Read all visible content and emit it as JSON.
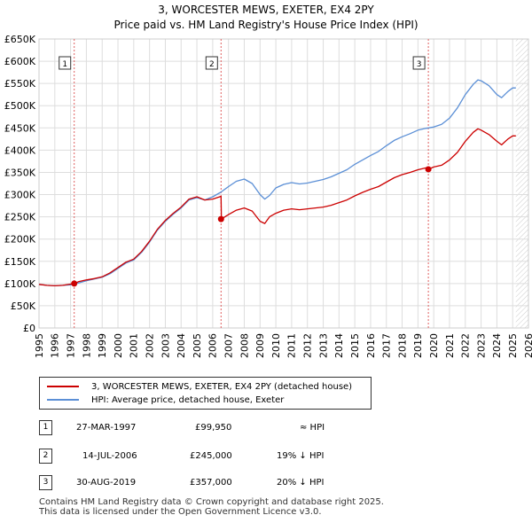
{
  "title": "3, WORCESTER MEWS, EXETER, EX4 2PY",
  "subtitle": "Price paid vs. HM Land Registry's House Price Index (HPI)",
  "colors": {
    "property": "#cc0000",
    "hpi": "#5b8fd6",
    "marker_line": "#e06060",
    "hatch": "#aaaaaa"
  },
  "chart_data": {
    "type": "line",
    "ylim": [
      0,
      650000
    ],
    "xlim": [
      1995,
      2026
    ],
    "y_ticks": [
      "£0",
      "£50K",
      "£100K",
      "£150K",
      "£200K",
      "£250K",
      "£300K",
      "£350K",
      "£400K",
      "£450K",
      "£500K",
      "£550K",
      "£600K",
      "£650K"
    ],
    "x_ticks": [
      "1995",
      "1996",
      "1997",
      "1998",
      "1999",
      "2000",
      "2001",
      "2002",
      "2003",
      "2004",
      "2005",
      "2006",
      "2007",
      "2008",
      "2009",
      "2010",
      "2011",
      "2012",
      "2013",
      "2014",
      "2015",
      "2016",
      "2017",
      "2018",
      "2019",
      "2020",
      "2021",
      "2022",
      "2023",
      "2024",
      "2025",
      "2026"
    ],
    "grid": true,
    "future_hatch_from": 2025.2,
    "series": [
      {
        "name": "3, WORCESTER MEWS, EXETER, EX4 2PY (detached house)",
        "x": [
          1995.0,
          1995.5,
          1996.0,
          1996.5,
          1997.23,
          1997.5,
          1998.0,
          1998.5,
          1999.0,
          1999.5,
          2000.0,
          2000.5,
          2001.0,
          2001.5,
          2002.0,
          2002.5,
          2003.0,
          2003.5,
          2004.0,
          2004.5,
          2005.0,
          2005.5,
          2006.0,
          2006.53,
          2006.55,
          2007.0,
          2007.5,
          2008.0,
          2008.5,
          2009.0,
          2009.3,
          2009.6,
          2010.0,
          2010.5,
          2011.0,
          2011.5,
          2012.0,
          2012.5,
          2013.0,
          2013.5,
          2014.0,
          2014.5,
          2015.0,
          2015.5,
          2016.0,
          2016.5,
          2017.0,
          2017.5,
          2018.0,
          2018.5,
          2019.0,
          2019.5,
          2019.66,
          2020.0,
          2020.5,
          2021.0,
          2021.5,
          2022.0,
          2022.5,
          2022.8,
          2023.0,
          2023.5,
          2024.0,
          2024.3,
          2024.7,
          2025.0,
          2025.2
        ],
        "y": [
          98000,
          96000,
          95000,
          96000,
          99950,
          104000,
          108000,
          111000,
          115000,
          124000,
          136000,
          148000,
          155000,
          172000,
          195000,
          222000,
          242000,
          258000,
          272000,
          290000,
          295000,
          288000,
          290000,
          296000,
          245000,
          255000,
          265000,
          270000,
          263000,
          240000,
          235000,
          250000,
          258000,
          265000,
          268000,
          266000,
          268000,
          270000,
          272000,
          276000,
          282000,
          288000,
          297000,
          305000,
          312000,
          318000,
          328000,
          338000,
          345000,
          350000,
          356000,
          360000,
          357000,
          362000,
          366000,
          378000,
          395000,
          420000,
          440000,
          448000,
          445000,
          435000,
          420000,
          412000,
          425000,
          432000,
          432000
        ]
      },
      {
        "name": "HPI: Average price, detached house, Exeter",
        "x": [
          1995.0,
          1995.5,
          1996.0,
          1996.5,
          1997.0,
          1997.5,
          1998.0,
          1998.5,
          1999.0,
          1999.5,
          2000.0,
          2000.5,
          2001.0,
          2001.5,
          2002.0,
          2002.5,
          2003.0,
          2003.5,
          2004.0,
          2004.5,
          2005.0,
          2005.5,
          2006.0,
          2006.5,
          2007.0,
          2007.5,
          2008.0,
          2008.5,
          2009.0,
          2009.3,
          2009.6,
          2010.0,
          2010.5,
          2011.0,
          2011.5,
          2012.0,
          2012.5,
          2013.0,
          2013.5,
          2014.0,
          2014.5,
          2015.0,
          2015.5,
          2016.0,
          2016.5,
          2017.0,
          2017.5,
          2018.0,
          2018.5,
          2019.0,
          2019.5,
          2020.0,
          2020.5,
          2021.0,
          2021.5,
          2022.0,
          2022.5,
          2022.8,
          2023.0,
          2023.5,
          2024.0,
          2024.3,
          2024.7,
          2025.0,
          2025.2
        ],
        "y": [
          98000,
          96000,
          95000,
          96000,
          97000,
          101000,
          106000,
          110000,
          114000,
          122000,
          134000,
          146000,
          153000,
          170000,
          193000,
          220000,
          240000,
          256000,
          270000,
          288000,
          293000,
          288000,
          295000,
          305000,
          318000,
          330000,
          335000,
          325000,
          300000,
          290000,
          298000,
          315000,
          323000,
          327000,
          324000,
          326000,
          330000,
          334000,
          340000,
          348000,
          356000,
          368000,
          378000,
          388000,
          397000,
          410000,
          422000,
          430000,
          437000,
          445000,
          449000,
          452000,
          458000,
          472000,
          495000,
          525000,
          548000,
          558000,
          556000,
          545000,
          525000,
          518000,
          532000,
          540000,
          540000
        ]
      }
    ],
    "markers": [
      {
        "label": "1",
        "x": 1997.23,
        "y": 99950
      },
      {
        "label": "2",
        "x": 2006.53,
        "y": 245000
      },
      {
        "label": "3",
        "x": 2019.66,
        "y": 357000
      }
    ]
  },
  "legend": {
    "property": "3, WORCESTER MEWS, EXETER, EX4 2PY (detached house)",
    "hpi": "HPI: Average price, detached house, Exeter"
  },
  "transactions": [
    {
      "num": "1",
      "date": "27-MAR-1997",
      "price": "£99,950",
      "hpi": "≈ HPI"
    },
    {
      "num": "2",
      "date": "14-JUL-2006",
      "price": "£245,000",
      "hpi": "19% ↓ HPI"
    },
    {
      "num": "3",
      "date": "30-AUG-2019",
      "price": "£357,000",
      "hpi": "20% ↓ HPI"
    }
  ],
  "footer": {
    "line1": "Contains HM Land Registry data © Crown copyright and database right 2025.",
    "line2": "This data is licensed under the Open Government Licence v3.0."
  }
}
